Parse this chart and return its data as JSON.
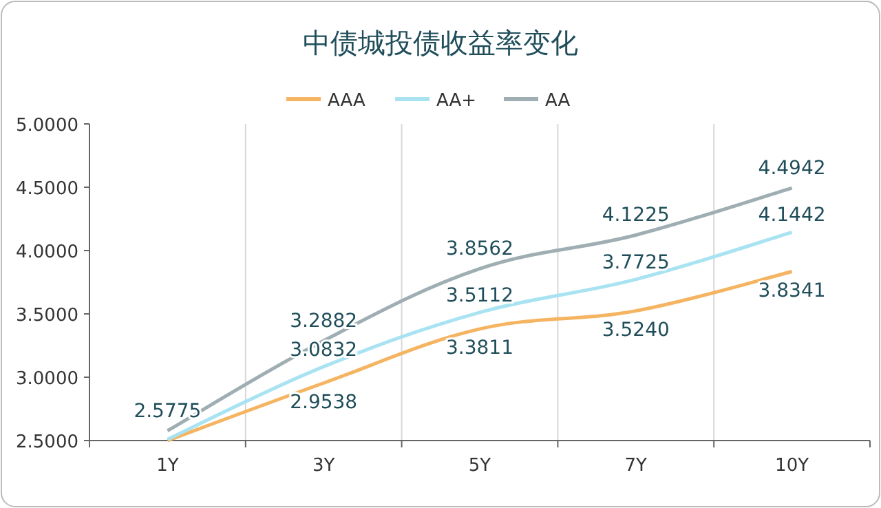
{
  "chart_data": {
    "type": "line",
    "title": "中债城投债收益率变化",
    "categories": [
      "1Y",
      "3Y",
      "5Y",
      "7Y",
      "10Y"
    ],
    "series": [
      {
        "name": "AAA",
        "color": "#f5b461",
        "values": [
          2.5,
          2.9538,
          3.3811,
          3.524,
          3.8341
        ],
        "value_labels": [
          null,
          "2.9538",
          "3.3811",
          "3.5240",
          "3.8341"
        ]
      },
      {
        "name": "AA+",
        "color": "#a9e3f2",
        "values": [
          2.51,
          3.0832,
          3.5112,
          3.7725,
          4.1442
        ],
        "value_labels": [
          null,
          "3.0832",
          "3.5112",
          "3.7725",
          "4.1442"
        ]
      },
      {
        "name": "AA",
        "color": "#9eaeb2",
        "values": [
          2.5775,
          3.2882,
          3.8562,
          4.1225,
          4.4942
        ],
        "value_labels": [
          "2.5775",
          "3.2882",
          "3.8562",
          "4.1225",
          "4.4942"
        ]
      }
    ],
    "ylim": [
      2.5,
      5.0
    ],
    "yticks": [
      {
        "value": 2.5,
        "label": "2.5000"
      },
      {
        "value": 3.0,
        "label": "3.0000"
      },
      {
        "value": 3.5,
        "label": "3.5000"
      },
      {
        "value": 4.0,
        "label": "4.0000"
      },
      {
        "value": 4.5,
        "label": "4.5000"
      },
      {
        "value": 5.0,
        "label": "5.0000"
      }
    ],
    "grid": "x",
    "legend": "top",
    "marker": "none",
    "line_style": "solid"
  }
}
